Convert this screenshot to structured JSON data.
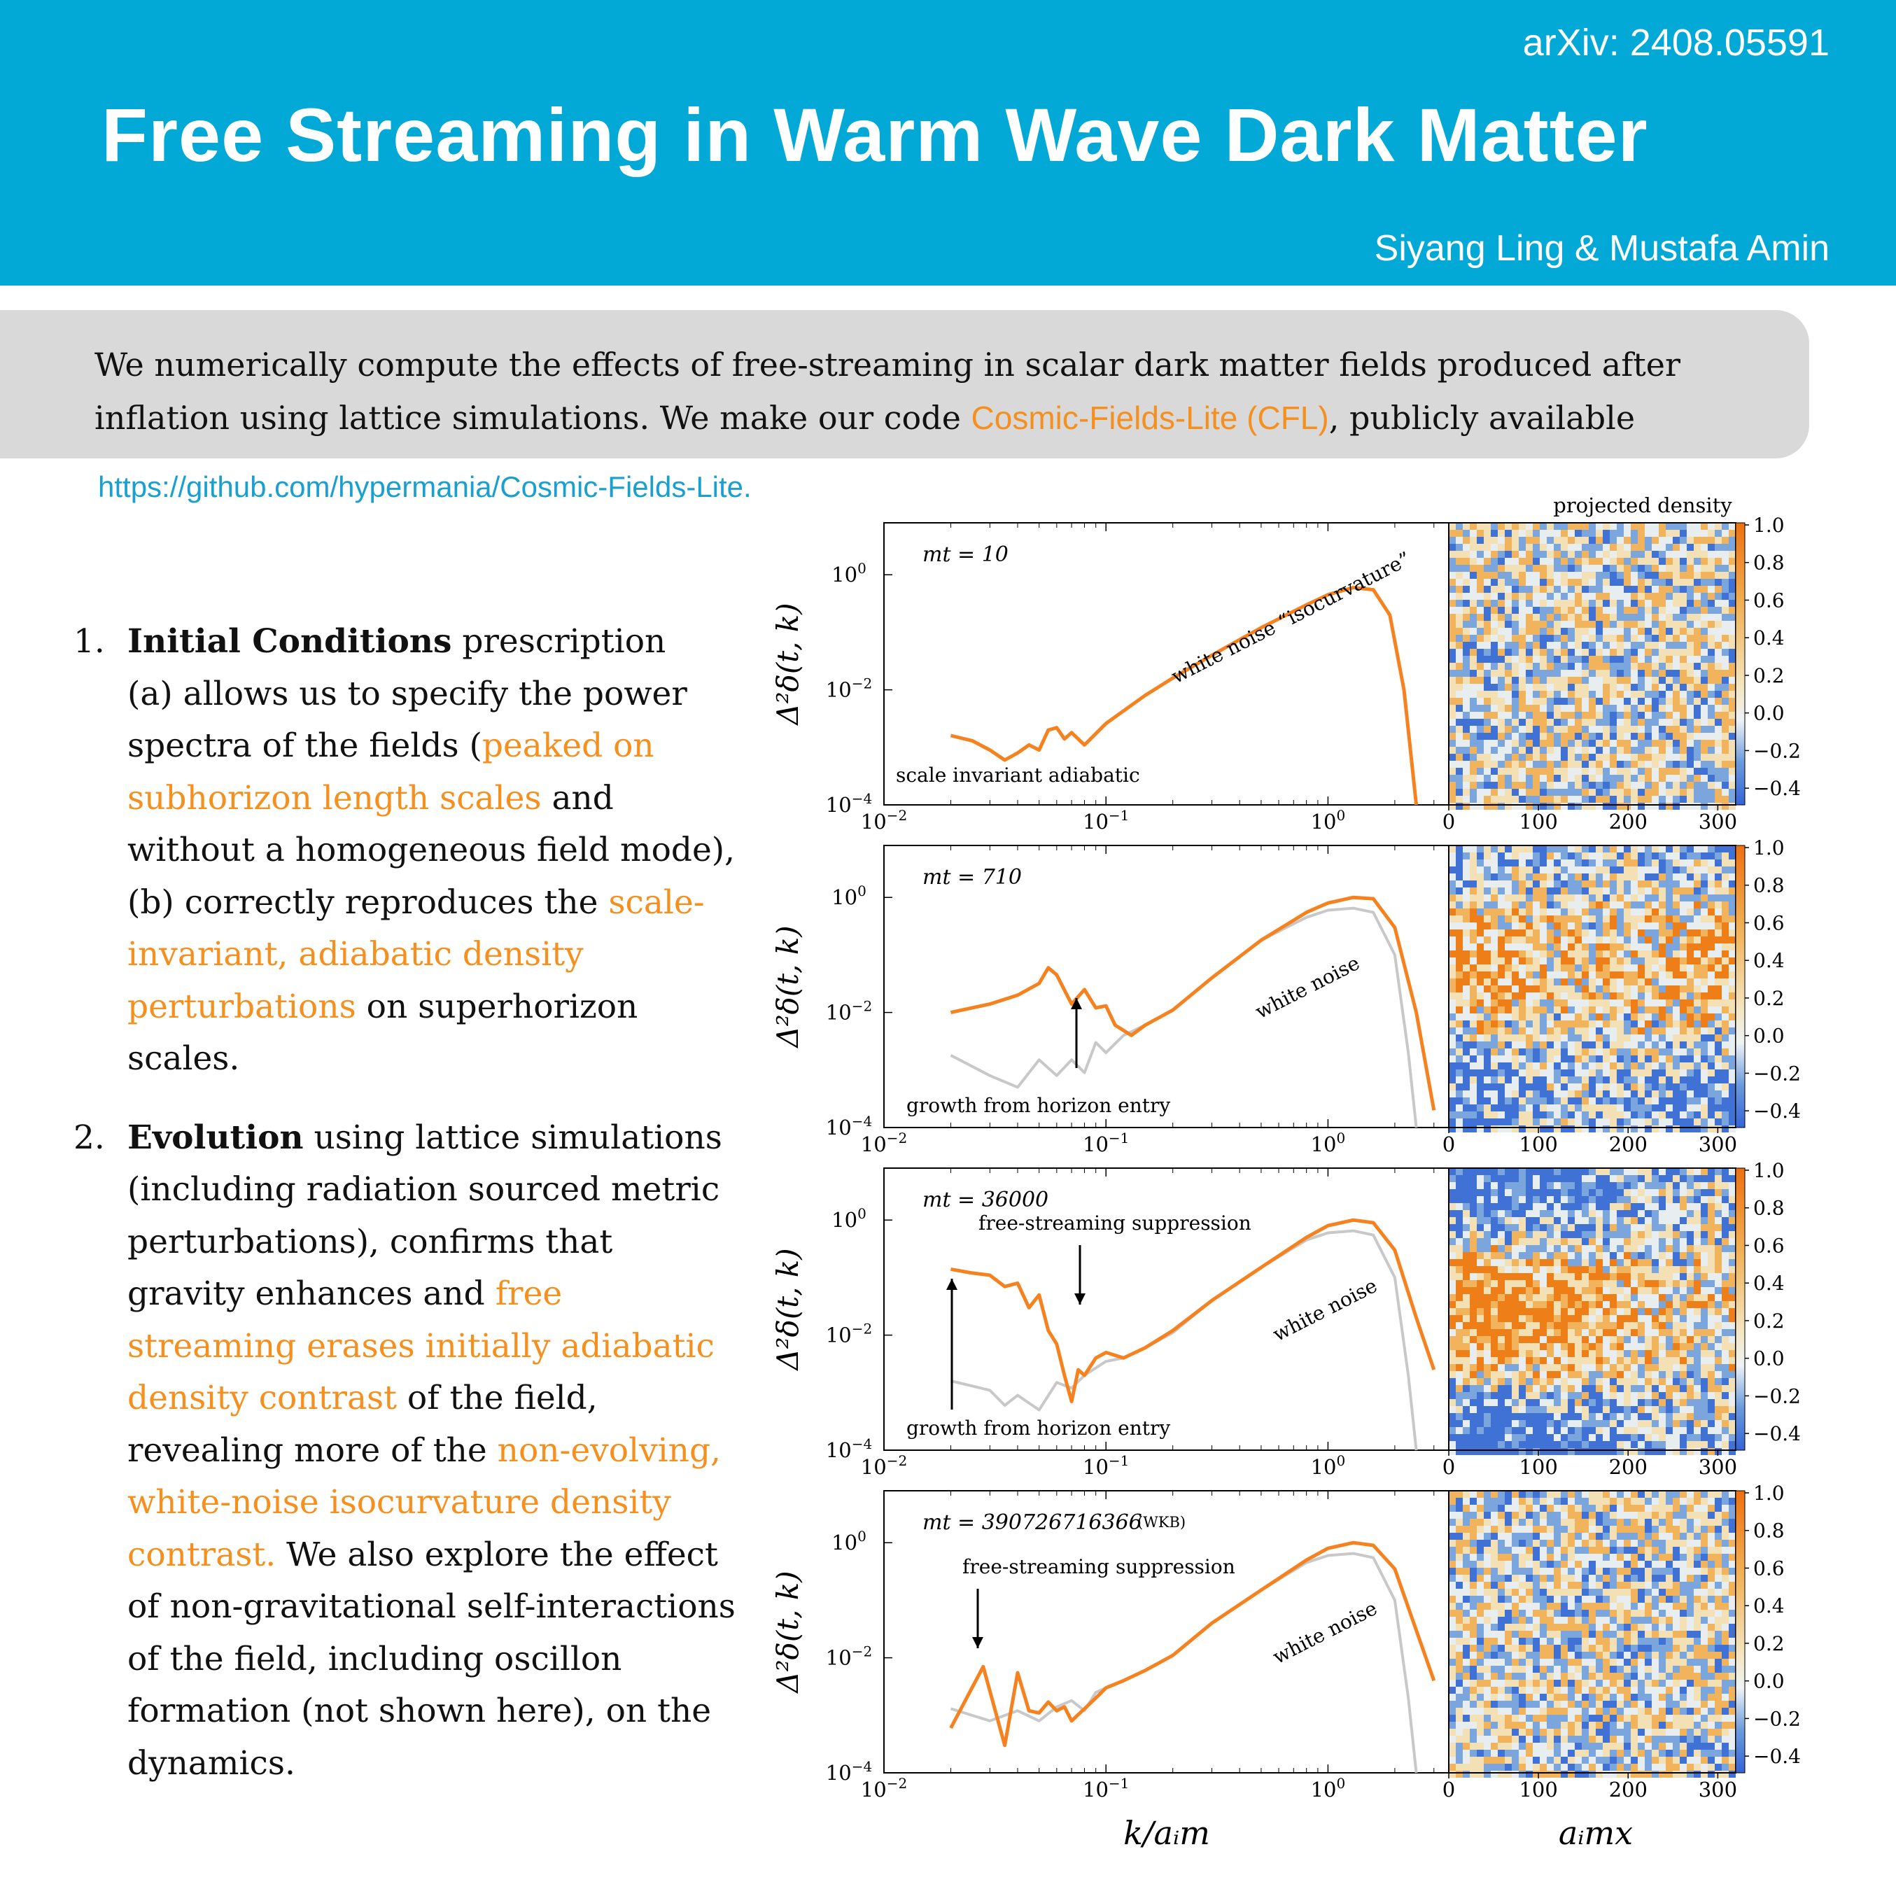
{
  "header": {
    "arxiv": "arXiv: 2408.05591",
    "title": "Free Streaming in Warm Wave Dark Matter",
    "authors": "Siyang Ling & Mustafa Amin"
  },
  "abstract": {
    "text_before": "We numerically compute the effects of free-streaming in scalar dark matter fields produced after inflation using lattice simulations. We make our code ",
    "code_name": "Cosmic-Fields-Lite (CFL)",
    "text_after": ", publicly available"
  },
  "link": "https://github.com/hypermania/Cosmic-Fields-Lite.",
  "items": [
    {
      "number": "1.",
      "bold": "Initial Conditions",
      "s1": " prescription",
      "s2": "(a) allows us to specify the power spectra of the fields (",
      "h1": "peaked on subhorizon length scales",
      "s3": " and without a homogeneous field mode),",
      "s4": "(b) correctly reproduces the ",
      "h2": "scale-invariant, adiabatic density perturbations",
      "s5": " on superhorizon scales."
    },
    {
      "number": "2.",
      "bold": "Evolution",
      "s1": " using lattice simulations (including radiation sourced metric perturbations), confirms that gravity enhances and ",
      "h1": "free streaming erases initially adiabatic density contrast",
      "s2": " of the field, revealing more of the ",
      "h2": "non-evolving, white-noise isocurvature density contrast.",
      "s3": " We also explore the effect of non-gravitational self-interactions of the field, including oscillon formation (not shown here), on the dynamics."
    }
  ],
  "figure": {
    "colorbar_title": "projected density",
    "colorbar_ticks": [
      "1.0",
      "0.8",
      "0.6",
      "0.4",
      "0.2",
      "0.0",
      "−0.2",
      "−0.4"
    ],
    "x_ticks_left": [
      "10",
      "10",
      "10"
    ],
    "x_tick_exponents": [
      "−2",
      "−1",
      "0"
    ],
    "y_ticks": [
      "10",
      "10",
      "10"
    ],
    "y_tick_exponents": [
      "0",
      "−2",
      "−4"
    ],
    "x_ticks_right": [
      "0",
      "100",
      "200",
      "300"
    ],
    "ylabel": "Δ²δ(t, k)",
    "xlabel_left": "k/aᵢm",
    "xlabel_right": "aᵢmx",
    "colors": {
      "orange": "#f5821f",
      "gray": "#c8c8c8",
      "heat_blue": "#3a6fd0",
      "heat_orange": "#f08a1a"
    },
    "panels": [
      {
        "mt": "mt = 10",
        "wkb": "",
        "annotations": [
          "scale invariant adiabatic",
          "white noise “isocurvature”"
        ]
      },
      {
        "mt": "mt = 710",
        "wkb": "",
        "annotations": [
          "growth from horizon entry",
          "white noise"
        ]
      },
      {
        "mt": "mt = 36000",
        "wkb": "",
        "annotations": [
          "free-streaming suppression",
          "growth from horizon entry",
          "white noise"
        ]
      },
      {
        "mt": "mt = 390726716366",
        "wkb": "(WKB)",
        "annotations": [
          "free-streaming suppression",
          "white noise"
        ]
      }
    ]
  },
  "chart_data": [
    {
      "type": "line",
      "title": "mt = 10",
      "xlabel": "k/aᵢm",
      "ylabel": "Δ²δ(t, k)",
      "xscale": "log",
      "yscale": "log",
      "xlim": [
        0.01,
        3.5
      ],
      "ylim": [
        0.0001,
        8
      ],
      "series": [
        {
          "color": "#f5821f",
          "x": [
            0.02,
            0.025,
            0.03,
            0.035,
            0.04,
            0.045,
            0.05,
            0.055,
            0.06,
            0.065,
            0.07,
            0.08,
            0.1,
            0.15,
            0.2,
            0.3,
            0.5,
            0.8,
            1.0,
            1.3,
            1.6,
            1.9,
            2.2,
            2.5
          ],
          "y": [
            0.0016,
            0.0013,
            0.0009,
            0.0006,
            0.0008,
            0.0011,
            0.0009,
            0.002,
            0.0022,
            0.0014,
            0.0018,
            0.0011,
            0.0026,
            0.008,
            0.016,
            0.04,
            0.12,
            0.3,
            0.45,
            0.6,
            0.55,
            0.2,
            0.01,
            0.0001
          ]
        }
      ]
    },
    {
      "type": "line",
      "title": "mt = 710",
      "xlabel": "k/aᵢm",
      "ylabel": "Δ²δ(t, k)",
      "xscale": "log",
      "yscale": "log",
      "xlim": [
        0.01,
        3.5
      ],
      "ylim": [
        0.0001,
        8
      ],
      "series": [
        {
          "color": "#f5821f",
          "x": [
            0.02,
            0.03,
            0.04,
            0.05,
            0.055,
            0.06,
            0.07,
            0.08,
            0.09,
            0.1,
            0.11,
            0.13,
            0.15,
            0.2,
            0.3,
            0.5,
            0.8,
            1.0,
            1.3,
            1.6,
            2.0,
            2.5,
            3.0
          ],
          "y": [
            0.01,
            0.014,
            0.02,
            0.032,
            0.06,
            0.045,
            0.014,
            0.025,
            0.012,
            0.013,
            0.006,
            0.004,
            0.006,
            0.011,
            0.04,
            0.18,
            0.55,
            0.8,
            1.0,
            0.95,
            0.3,
            0.01,
            0.0002
          ]
        },
        {
          "color": "#c8c8c8",
          "x": [
            0.02,
            0.03,
            0.04,
            0.05,
            0.06,
            0.07,
            0.08,
            0.09,
            0.1,
            0.12,
            0.15,
            0.2,
            0.3,
            0.5,
            0.8,
            1.0,
            1.3,
            1.6,
            2.0,
            2.3,
            2.5
          ],
          "y": [
            0.0018,
            0.0008,
            0.0005,
            0.0015,
            0.0008,
            0.0015,
            0.0009,
            0.003,
            0.002,
            0.004,
            0.006,
            0.011,
            0.04,
            0.18,
            0.45,
            0.6,
            0.65,
            0.55,
            0.1,
            0.002,
            0.0001
          ]
        }
      ]
    },
    {
      "type": "line",
      "title": "mt = 36000",
      "xlabel": "k/aᵢm",
      "ylabel": "Δ²δ(t, k)",
      "xscale": "log",
      "yscale": "log",
      "xlim": [
        0.01,
        3.5
      ],
      "ylim": [
        0.0001,
        8
      ],
      "series": [
        {
          "color": "#f5821f",
          "x": [
            0.02,
            0.025,
            0.03,
            0.035,
            0.04,
            0.045,
            0.05,
            0.055,
            0.06,
            0.065,
            0.07,
            0.075,
            0.08,
            0.09,
            0.1,
            0.12,
            0.15,
            0.2,
            0.3,
            0.5,
            0.8,
            1.0,
            1.3,
            1.6,
            2.0,
            2.5,
            3.0
          ],
          "y": [
            0.14,
            0.12,
            0.11,
            0.07,
            0.08,
            0.03,
            0.05,
            0.012,
            0.007,
            0.002,
            0.0007,
            0.0025,
            0.002,
            0.004,
            0.005,
            0.004,
            0.006,
            0.012,
            0.04,
            0.15,
            0.5,
            0.8,
            1.0,
            0.9,
            0.3,
            0.02,
            0.0025
          ]
        },
        {
          "color": "#c8c8c8",
          "x": [
            0.02,
            0.03,
            0.035,
            0.04,
            0.05,
            0.06,
            0.07,
            0.08,
            0.1,
            0.12,
            0.15,
            0.2,
            0.3,
            0.5,
            0.8,
            1.0,
            1.3,
            1.6,
            2.0,
            2.3,
            2.5
          ],
          "y": [
            0.0016,
            0.0011,
            0.0006,
            0.0009,
            0.0005,
            0.0015,
            0.0012,
            0.002,
            0.0035,
            0.004,
            0.006,
            0.011,
            0.04,
            0.15,
            0.45,
            0.6,
            0.65,
            0.55,
            0.1,
            0.002,
            0.0001
          ]
        }
      ]
    },
    {
      "type": "line",
      "title": "mt = 390726716366",
      "xlabel": "k/aᵢm",
      "ylabel": "Δ²δ(t, k)",
      "xscale": "log",
      "yscale": "log",
      "xlim": [
        0.01,
        3.5
      ],
      "ylim": [
        0.0001,
        8
      ],
      "series": [
        {
          "color": "#f5821f",
          "x": [
            0.02,
            0.028,
            0.035,
            0.04,
            0.045,
            0.05,
            0.055,
            0.06,
            0.065,
            0.07,
            0.08,
            0.09,
            0.1,
            0.12,
            0.15,
            0.2,
            0.3,
            0.5,
            0.8,
            1.0,
            1.3,
            1.6,
            2.0,
            2.5,
            3.0
          ],
          "y": [
            0.0006,
            0.007,
            0.0003,
            0.0055,
            0.0012,
            0.0011,
            0.0017,
            0.0012,
            0.0014,
            0.0008,
            0.0013,
            0.002,
            0.003,
            0.004,
            0.006,
            0.011,
            0.04,
            0.15,
            0.5,
            0.8,
            1.0,
            0.9,
            0.35,
            0.03,
            0.004
          ]
        },
        {
          "color": "#c8c8c8",
          "x": [
            0.02,
            0.03,
            0.04,
            0.05,
            0.06,
            0.07,
            0.08,
            0.09,
            0.1,
            0.12,
            0.15,
            0.2,
            0.3,
            0.5,
            0.8,
            1.0,
            1.3,
            1.6,
            2.0,
            2.3,
            2.5
          ],
          "y": [
            0.0013,
            0.0008,
            0.0012,
            0.0008,
            0.0014,
            0.0018,
            0.0012,
            0.0025,
            0.003,
            0.004,
            0.006,
            0.011,
            0.04,
            0.15,
            0.45,
            0.6,
            0.65,
            0.55,
            0.1,
            0.002,
            0.0001
          ]
        }
      ]
    }
  ]
}
